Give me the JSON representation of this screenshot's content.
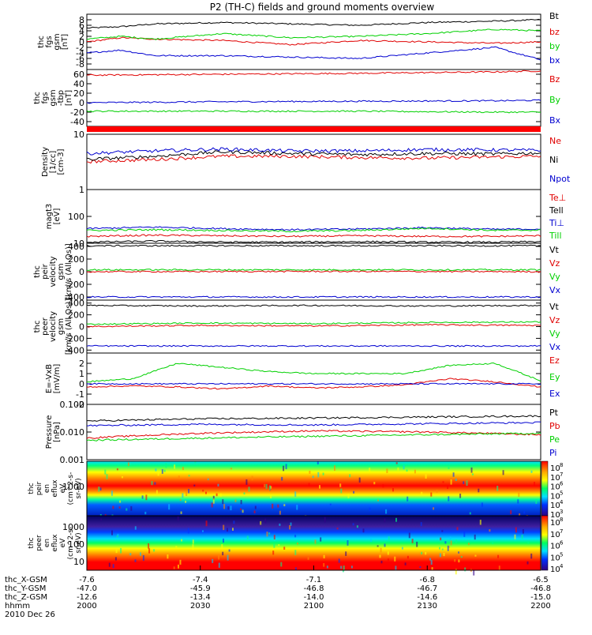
{
  "chart_data": {
    "type": "line",
    "title": "P2 (TH-C) fields and ground moments overview",
    "colors": {
      "black": "#000000",
      "red": "#e00000",
      "green": "#00d000",
      "blue": "#0000d0",
      "bar": "#ff0000"
    },
    "panels": [
      {
        "id": "fgs-gsm",
        "ylabel_lines": [
          "thc",
          "fgs",
          "gsm",
          "[nT]"
        ],
        "ylim": [
          -10,
          10
        ],
        "ticks": [
          {
            "v": -8,
            "t": "-8"
          },
          {
            "v": -6,
            "t": "-6"
          },
          {
            "v": -4,
            "t": "-4"
          },
          {
            "v": -2,
            "t": "-2"
          },
          {
            "v": 0,
            "t": "0"
          },
          {
            "v": 2,
            "t": "2"
          },
          {
            "v": 4,
            "t": "4"
          },
          {
            "v": 6,
            "t": "6"
          },
          {
            "v": 8,
            "t": "8"
          }
        ],
        "series": [
          {
            "name": "Bt",
            "color": "black",
            "x": [
              0,
              15,
              30,
              60,
              90,
              120,
              150,
              180,
              200
            ],
            "y": [
              5,
              5.5,
              6.5,
              7,
              6.5,
              6,
              7,
              7.5,
              8
            ]
          },
          {
            "name": "bz",
            "color": "red",
            "x": [
              0,
              15,
              30,
              60,
              90,
              120,
              150,
              180,
              200
            ],
            "y": [
              0,
              1.5,
              1,
              0.5,
              -1,
              0.5,
              0,
              -0.5,
              0
            ]
          },
          {
            "name": "by",
            "color": "green",
            "x": [
              0,
              15,
              30,
              60,
              90,
              120,
              150,
              180,
              200
            ],
            "y": [
              1,
              2,
              1,
              3,
              1.5,
              2,
              3,
              4.5,
              4
            ]
          },
          {
            "name": "bx",
            "color": "blue",
            "x": [
              0,
              15,
              30,
              60,
              90,
              120,
              150,
              180,
              200
            ],
            "y": [
              -4,
              -3,
              -5,
              -5,
              -5.5,
              -6,
              -4,
              -2,
              -6.5
            ]
          }
        ]
      },
      {
        "id": "fgs-gsm-tbp",
        "ylabel_lines": [
          "thc",
          "fgs",
          "gsm",
          "-tbp",
          "[nT]"
        ],
        "ylim": [
          -50,
          70
        ],
        "ticks": [
          {
            "v": -40,
            "t": "-40"
          },
          {
            "v": -20,
            "t": "-20"
          },
          {
            "v": 0,
            "t": "0"
          },
          {
            "v": 20,
            "t": "20"
          },
          {
            "v": 40,
            "t": "40"
          },
          {
            "v": 60,
            "t": "60"
          }
        ],
        "series": [
          {
            "name": "Bz",
            "color": "red",
            "x": [
              0,
              60,
              120,
              180,
              200
            ],
            "y": [
              58,
              60,
              62,
              65,
              67
            ]
          },
          {
            "name": "By",
            "color": "green",
            "x": [
              0,
              60,
              120,
              180,
              200
            ],
            "y": [
              -18,
              -18,
              -18,
              -20,
              -20
            ]
          },
          {
            "name": "Bx",
            "color": "blue",
            "x": [
              0,
              60,
              120,
              180,
              200
            ],
            "y": [
              0,
              2,
              3,
              4,
              5
            ]
          }
        ]
      },
      {
        "id": "density",
        "ylabel_lines": [
          "Density",
          "[1/cc]",
          "[cm-3]"
        ],
        "log": true,
        "ylim": [
          1,
          10
        ],
        "ticks": [
          {
            "v": 1,
            "t": "1"
          },
          {
            "v": 10,
            "t": "10"
          }
        ],
        "series": [
          {
            "name": "Ne",
            "color": "red",
            "x": [
              0,
              30,
              60,
              90,
              120,
              150,
              180,
              200
            ],
            "y": [
              3.2,
              3.5,
              4,
              4,
              3.8,
              3.7,
              3.9,
              4
            ]
          },
          {
            "name": "Ni",
            "color": "black",
            "x": [
              0,
              30,
              60,
              90,
              120,
              150,
              180,
              200
            ],
            "y": [
              3.5,
              4,
              4.8,
              4.5,
              4.3,
              4.5,
              4.4,
              4.6
            ]
          },
          {
            "name": "Npot",
            "color": "blue",
            "x": [
              0,
              30,
              60,
              90,
              120,
              150,
              180,
              200
            ],
            "y": [
              4.5,
              5,
              5.4,
              5,
              5,
              5.3,
              5.2,
              5.1
            ]
          }
        ]
      },
      {
        "id": "temperature",
        "ylabel_lines": [
          "magt3",
          "[eV]"
        ],
        "log": true,
        "ylim": [
          10,
          1000
        ],
        "ticks": [
          {
            "v": 10,
            "t": "10"
          },
          {
            "v": 100,
            "t": "100"
          }
        ],
        "series": [
          {
            "name": "Te⊥",
            "color": "red",
            "x": [
              0,
              30,
              60,
              90,
              120,
              150,
              180,
              200
            ],
            "y": [
              18,
              20,
              19,
              18,
              19,
              18,
              18,
              19
            ]
          },
          {
            "name": "Tell",
            "color": "black",
            "x": [
              0,
              30,
              60,
              90,
              120,
              150,
              180,
              200
            ],
            "y": [
              11,
              12,
              11,
              11,
              11.5,
              11,
              11,
              11.5
            ]
          },
          {
            "name": "Ti⊥",
            "color": "blue",
            "x": [
              0,
              30,
              60,
              90,
              120,
              150,
              180,
              200
            ],
            "y": [
              35,
              40,
              35,
              32,
              34,
              38,
              33,
              34
            ]
          },
          {
            "name": "Till",
            "color": "green",
            "x": [
              0,
              30,
              60,
              90,
              120,
              150,
              180,
              200
            ],
            "y": [
              30,
              32,
              30,
              28,
              30,
              36,
              30,
              31
            ]
          }
        ]
      },
      {
        "id": "peir-velocity",
        "ylabel_lines": [
          "thc",
          "peir",
          "velocity",
          "gsm",
          "[km/s (All Qs)]"
        ],
        "ylim": [
          -450,
          450
        ],
        "ticks": [
          {
            "v": -400,
            "t": "-400"
          },
          {
            "v": -200,
            "t": "-200"
          },
          {
            "v": 0,
            "t": "0"
          },
          {
            "v": 200,
            "t": "200"
          },
          {
            "v": 400,
            "t": "400"
          }
        ],
        "series": [
          {
            "name": "Vt",
            "color": "black",
            "x": [
              0,
              100,
              200
            ],
            "y": [
              410,
              410,
              410
            ]
          },
          {
            "name": "Vz",
            "color": "red",
            "x": [
              0,
              100,
              200
            ],
            "y": [
              0,
              5,
              0
            ]
          },
          {
            "name": "Vy",
            "color": "green",
            "x": [
              0,
              100,
              200
            ],
            "y": [
              30,
              30,
              30
            ]
          },
          {
            "name": "Vx",
            "color": "blue",
            "x": [
              0,
              100,
              200
            ],
            "y": [
              -400,
              -400,
              -400
            ]
          }
        ]
      },
      {
        "id": "peer-velocity",
        "ylabel_lines": [
          "thc",
          "peer",
          "velocity",
          "gsm",
          "[km/s (All Qs)]"
        ],
        "ylim": [
          -450,
          450
        ],
        "ticks": [
          {
            "v": -400,
            "t": "-400"
          },
          {
            "v": -200,
            "t": "-200"
          },
          {
            "v": 0,
            "t": "0"
          },
          {
            "v": 200,
            "t": "200"
          },
          {
            "v": 400,
            "t": "400"
          }
        ],
        "series": [
          {
            "name": "Vt",
            "color": "black",
            "x": [
              0,
              50,
              100,
              150,
              200
            ],
            "y": [
              360,
              350,
              360,
              350,
              360
            ]
          },
          {
            "name": "Vz",
            "color": "red",
            "x": [
              0,
              50,
              100,
              150,
              200
            ],
            "y": [
              0,
              20,
              10,
              30,
              20
            ]
          },
          {
            "name": "Vy",
            "color": "green",
            "x": [
              0,
              50,
              100,
              150,
              200
            ],
            "y": [
              40,
              60,
              50,
              70,
              80
            ]
          },
          {
            "name": "Vx",
            "color": "blue",
            "x": [
              0,
              50,
              100,
              150,
              200
            ],
            "y": [
              -330,
              -330,
              -330,
              -330,
              -330
            ]
          }
        ]
      },
      {
        "id": "efield",
        "ylabel_lines": [
          "E=-VxB",
          "[mV/m]"
        ],
        "ylim": [
          -2,
          3
        ],
        "ticks": [
          {
            "v": -2,
            "t": "-2"
          },
          {
            "v": -1,
            "t": "-1"
          },
          {
            "v": 0,
            "t": "0"
          },
          {
            "v": 1,
            "t": "1"
          },
          {
            "v": 2,
            "t": "2"
          }
        ],
        "series": [
          {
            "name": "Ez",
            "color": "red",
            "x": [
              0,
              20,
              40,
              60,
              80,
              100,
              120,
              140,
              160,
              180,
              200
            ],
            "y": [
              -0.3,
              -0.2,
              -0.3,
              -0.5,
              -0.2,
              -0.4,
              -0.3,
              -0.1,
              0.5,
              0.2,
              -0.3
            ]
          },
          {
            "name": "Ey",
            "color": "green",
            "x": [
              0,
              20,
              40,
              60,
              80,
              100,
              120,
              140,
              160,
              180,
              200
            ],
            "y": [
              0.2,
              0.5,
              2,
              1.6,
              1.2,
              1,
              1,
              1,
              1.8,
              2,
              0.3
            ]
          },
          {
            "name": "Ex",
            "color": "blue",
            "x": [
              0,
              100,
              200
            ],
            "y": [
              0,
              0,
              0
            ]
          }
        ]
      },
      {
        "id": "pressure",
        "ylabel_lines": [
          "Pressure",
          "[nPa]"
        ],
        "log": true,
        "ylim": [
          0.001,
          0.1
        ],
        "ticks": [
          {
            "v": 0.001,
            "t": "0.001"
          },
          {
            "v": 0.01,
            "t": "0.010"
          },
          {
            "v": 0.1,
            "t": "0.100"
          }
        ],
        "series": [
          {
            "name": "Pt",
            "color": "black",
            "x": [
              0,
              50,
              100,
              150,
              200
            ],
            "y": [
              0.025,
              0.03,
              0.032,
              0.035,
              0.038
            ]
          },
          {
            "name": "Pb",
            "color": "red",
            "x": [
              0,
              50,
              100,
              150,
              200
            ],
            "y": [
              0.006,
              0.009,
              0.011,
              0.01,
              0.008
            ]
          },
          {
            "name": "Pe",
            "color": "green",
            "x": [
              0,
              50,
              100,
              150,
              200
            ],
            "y": [
              0.005,
              0.006,
              0.007,
              0.008,
              0.009
            ]
          },
          {
            "name": "Pi",
            "color": "blue",
            "x": [
              0,
              50,
              100,
              150,
              200
            ],
            "y": [
              0.017,
              0.019,
              0.018,
              0.02,
              0.022
            ]
          }
        ]
      }
    ],
    "spectrograms": [
      {
        "id": "peir-en-eflux",
        "ylabel_lines": [
          "thc",
          "peir",
          "en",
          "eflux",
          "eV",
          "(cm^2-s-",
          "sr-eV)"
        ],
        "ytick_label": "1000",
        "colorbar_labels": [
          "10",
          "10",
          "10",
          "10",
          "10",
          "10"
        ],
        "colorbar_exponents": [
          "8",
          "7",
          "6",
          "5",
          "4",
          "3"
        ]
      },
      {
        "id": "peer-en-eflux",
        "ylabel_lines": [
          "thc",
          "peer",
          "en",
          "eflux",
          "eV",
          "(cm^2-s-",
          "sr-eV)"
        ],
        "ytick_labels": [
          "1000",
          "100",
          "10"
        ],
        "colorbar_labels": [
          "10",
          "10",
          "10",
          "10",
          "10"
        ],
        "colorbar_exponents": [
          "8",
          "7",
          "6",
          "5",
          "4"
        ]
      }
    ],
    "xaxis": {
      "range": [
        0,
        200
      ],
      "tick_x": [
        0,
        30,
        60,
        90,
        120
      ],
      "rows": [
        {
          "label": "thc_X-GSM",
          "values": [
            "-7.6",
            "-7.4",
            "-7.1",
            "-6.8",
            "-6.5"
          ]
        },
        {
          "label": "thc_Y-GSM",
          "values": [
            "-47.0",
            "-45.9",
            "-46.8",
            "-46.7",
            "-46.8"
          ]
        },
        {
          "label": "thc_Z-GSM",
          "values": [
            "-12.6",
            "-13.4",
            "-14.0",
            "-14.6",
            "-15.0"
          ]
        },
        {
          "label": "hhmm",
          "values": [
            "2000",
            "2030",
            "2100",
            "2130",
            "2200"
          ]
        }
      ],
      "date": "2010 Dec 26"
    }
  }
}
